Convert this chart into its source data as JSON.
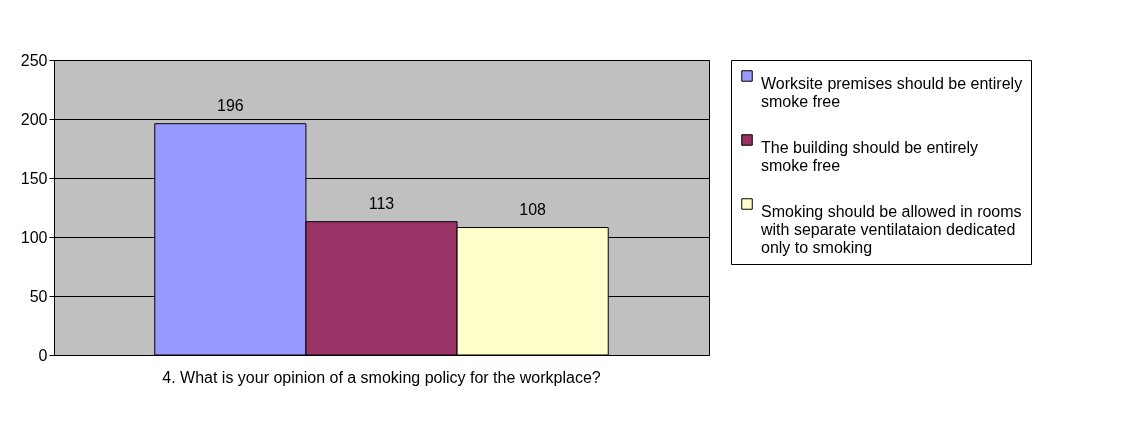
{
  "chart_data": {
    "type": "bar",
    "categories": [
      "4. What is your opinion of a smoking policy for the workplace?"
    ],
    "series": [
      {
        "name": "Worksite premises should be entirely smoke free",
        "color": "#9999ff",
        "values": [
          196
        ]
      },
      {
        "name": "The building should be entirely smoke free",
        "color": "#993366",
        "values": [
          113
        ]
      },
      {
        "name": "Smoking should be allowed in rooms with separate ventilataion dedicated only to smoking",
        "color": "#ffffcc",
        "values": [
          108
        ]
      }
    ],
    "ylim": [
      0,
      250
    ],
    "yticks": [
      0,
      50,
      100,
      150,
      200,
      250
    ],
    "grid": "y",
    "legend": "right",
    "data_labels": true
  }
}
